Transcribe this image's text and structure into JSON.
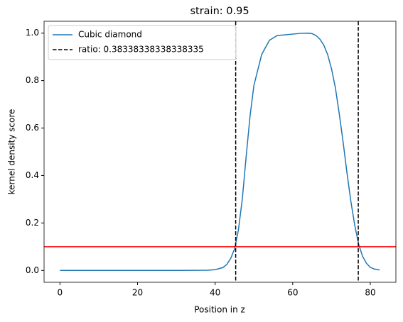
{
  "chart_data": {
    "type": "line",
    "title": "strain: 0.95",
    "xlabel": "Position in z",
    "ylabel": "kernel density score",
    "x": [
      0,
      10,
      20,
      30,
      38,
      40,
      42,
      43,
      44,
      45,
      46,
      47,
      48,
      49,
      50,
      52,
      54,
      56,
      58,
      60,
      62,
      64,
      65,
      66,
      67,
      68,
      69,
      70,
      71,
      72,
      73,
      74,
      75,
      76,
      77,
      78,
      79,
      80,
      81,
      82.4
    ],
    "series": [
      {
        "name": "Cubic diamond",
        "color": "#1f77b4",
        "values": [
          0,
          0,
          0,
          0,
          0.001,
          0.003,
          0.012,
          0.025,
          0.05,
          0.09,
          0.17,
          0.3,
          0.48,
          0.65,
          0.78,
          0.91,
          0.97,
          0.99,
          0.993,
          0.996,
          0.999,
          1.0,
          0.998,
          0.99,
          0.975,
          0.95,
          0.91,
          0.85,
          0.77,
          0.66,
          0.54,
          0.41,
          0.29,
          0.19,
          0.11,
          0.06,
          0.03,
          0.013,
          0.006,
          0.002
        ]
      }
    ],
    "vlines": {
      "name": "ratio: 0.38338338338338335",
      "color": "#000000",
      "values": [
        45.3,
        76.9
      ]
    },
    "hline": {
      "value": 0.1,
      "color": "#ff0000"
    },
    "xlim": [
      -4.1,
      86.6
    ],
    "ylim": [
      -0.05,
      1.05
    ],
    "xticks": [
      0,
      20,
      40,
      60,
      80
    ],
    "yticks": [
      {
        "value": 0,
        "label": "0.0"
      },
      {
        "value": 0.2,
        "label": "0.2"
      },
      {
        "value": 0.4,
        "label": "0.4"
      },
      {
        "value": 0.6,
        "label": "0.6"
      },
      {
        "value": 0.8,
        "label": "0.8"
      },
      {
        "value": 1,
        "label": "1.0"
      }
    ],
    "legend": "upper left"
  }
}
